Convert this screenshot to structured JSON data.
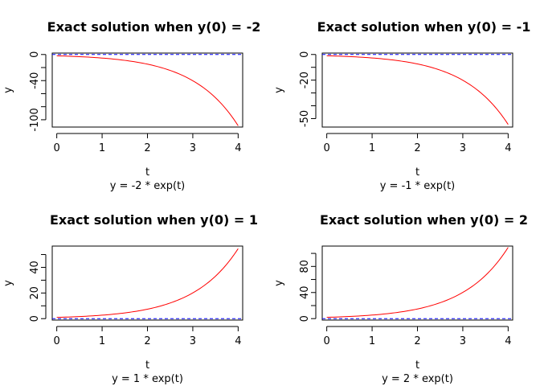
{
  "chart_data": [
    {
      "type": "line",
      "title": "Exact solution when y(0) =  -2",
      "xlabel": "t",
      "subtitle": "y = -2 * exp(t)",
      "ylabel": "y",
      "y0": -2,
      "x_ticks": [
        0,
        1,
        2,
        3,
        4
      ],
      "y_ticks": [
        0,
        -20,
        -40,
        -60,
        -80,
        -100
      ],
      "y_tick_labels": [
        "0",
        "",
        "-40",
        "",
        "",
        "-100"
      ],
      "xlim": [
        -0.1,
        4.1
      ],
      "ylim": [
        -111.2,
        2.2
      ],
      "reference_line_y": 0,
      "series": [
        {
          "x": [
            0,
            0.5,
            1,
            1.5,
            2,
            2.5,
            3,
            3.5,
            4
          ],
          "y": [
            -2,
            -3.3,
            -5.44,
            -8.96,
            -14.78,
            -24.36,
            -40.17,
            -66.23,
            -109.2
          ]
        }
      ]
    },
    {
      "type": "line",
      "title": "Exact solution when y(0) =  -1",
      "xlabel": "t",
      "subtitle": "y = -1 * exp(t)",
      "ylabel": "y",
      "y0": -1,
      "x_ticks": [
        0,
        1,
        2,
        3,
        4
      ],
      "y_ticks": [
        0,
        -10,
        -20,
        -30,
        -40,
        -50
      ],
      "y_tick_labels": [
        "0",
        "",
        "-20",
        "",
        "",
        "-50"
      ],
      "xlim": [
        -0.1,
        4.1
      ],
      "ylim": [
        -56.6,
        1.1
      ],
      "reference_line_y": 0,
      "series": [
        {
          "x": [
            0,
            0.5,
            1,
            1.5,
            2,
            2.5,
            3,
            3.5,
            4
          ],
          "y": [
            -1,
            -1.65,
            -2.72,
            -4.48,
            -7.39,
            -12.18,
            -20.09,
            -33.12,
            -54.6
          ]
        }
      ]
    },
    {
      "type": "line",
      "title": "Exact solution when y(0) =  1",
      "xlabel": "t",
      "subtitle": "y = 1 * exp(t)",
      "ylabel": "y",
      "y0": 1,
      "x_ticks": [
        0,
        1,
        2,
        3,
        4
      ],
      "y_ticks": [
        0,
        10,
        20,
        30,
        40,
        50
      ],
      "y_tick_labels": [
        "0",
        "",
        "20",
        "",
        "40",
        ""
      ],
      "xlim": [
        -0.1,
        4.1
      ],
      "ylim": [
        -1.1,
        56.6
      ],
      "reference_line_y": 0,
      "series": [
        {
          "x": [
            0,
            0.5,
            1,
            1.5,
            2,
            2.5,
            3,
            3.5,
            4
          ],
          "y": [
            1,
            1.65,
            2.72,
            4.48,
            7.39,
            12.18,
            20.09,
            33.12,
            54.6
          ]
        }
      ]
    },
    {
      "type": "line",
      "title": "Exact solution when y(0) =  2",
      "xlabel": "t",
      "subtitle": "y = 2 * exp(t)",
      "ylabel": "y",
      "y0": 2,
      "x_ticks": [
        0,
        1,
        2,
        3,
        4
      ],
      "y_ticks": [
        0,
        20,
        40,
        60,
        80,
        100
      ],
      "y_tick_labels": [
        "0",
        "",
        "40",
        "",
        "80",
        ""
      ],
      "xlim": [
        -0.1,
        4.1
      ],
      "ylim": [
        -2.2,
        111.2
      ],
      "reference_line_y": 0,
      "series": [
        {
          "x": [
            0,
            0.5,
            1,
            1.5,
            2,
            2.5,
            3,
            3.5,
            4
          ],
          "y": [
            2,
            3.3,
            5.44,
            8.96,
            14.78,
            24.36,
            40.17,
            66.23,
            109.2
          ]
        }
      ]
    }
  ],
  "colors": {
    "curve": "#ff0000",
    "reference_line": "#0000ff",
    "axes": "#000000"
  }
}
